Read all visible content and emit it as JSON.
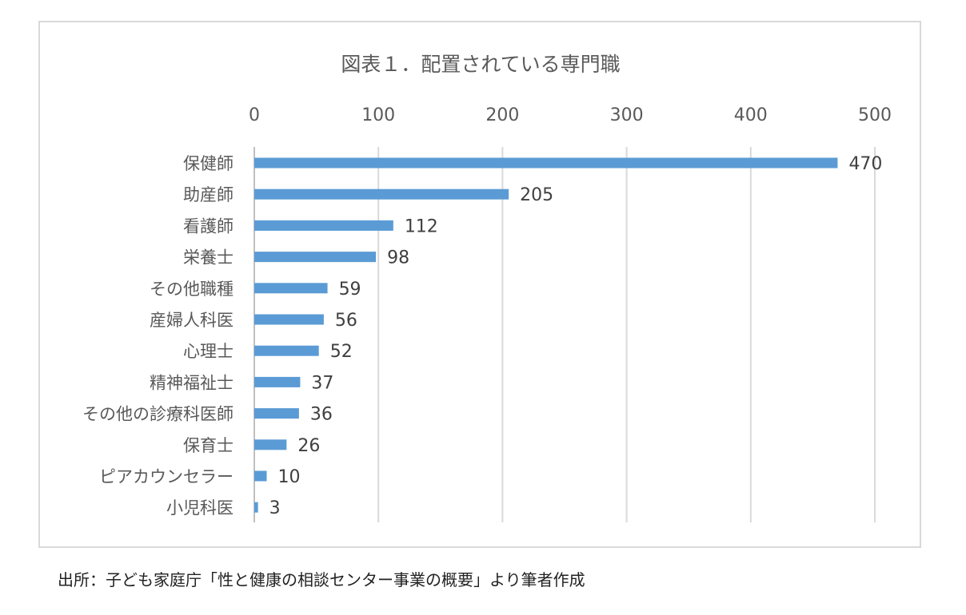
{
  "chart_data": {
    "type": "bar",
    "orientation": "horizontal",
    "title": "図表１．配置されている専門職",
    "xlabel": "",
    "ylabel": "",
    "xlim": [
      0,
      500
    ],
    "x_ticks": [
      0,
      100,
      200,
      300,
      400,
      500
    ],
    "x_axis_position": "top",
    "grid": true,
    "legend": "none",
    "bar_color": "#5b9bd5",
    "categories": [
      "保健師",
      "助産師",
      "看護師",
      "栄養士",
      "その他職種",
      "産婦人科医",
      "心理士",
      "精神福祉士",
      "その他の診療科医師",
      "保育士",
      "ピアカウンセラー",
      "小児科医"
    ],
    "values": [
      470,
      205,
      112,
      98,
      59,
      56,
      52,
      37,
      36,
      26,
      10,
      3
    ]
  },
  "source_note": "出所：子ども家庭庁「性と健康の相談センター事業の概要」より筆者作成"
}
